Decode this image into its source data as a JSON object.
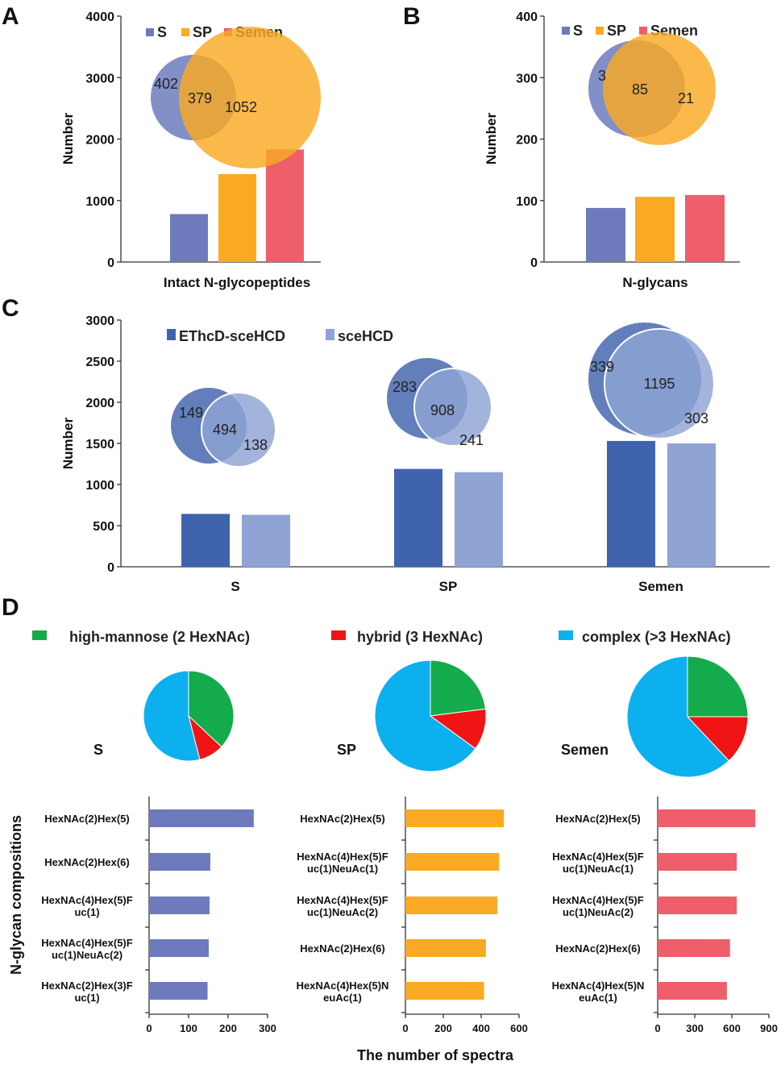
{
  "figure": {
    "xlabel": "The number of spectra",
    "ylabel": "N-glycan compositions"
  },
  "colors": {
    "S": "#6d7bbd",
    "SP": "#f9aa22",
    "Semen": "#ee5f6b",
    "ethcd": "#3f63ad",
    "scehcd": "#8fa3d4",
    "high_mannose": "#13ab4b",
    "hybrid": "#f01414",
    "complex": "#0db0ef"
  },
  "chart_data": [
    {
      "panel": "A",
      "type": "bar",
      "categories": [
        "S",
        "SP",
        "Semen"
      ],
      "values": [
        780,
        1430,
        1830
      ],
      "xlabel": "Intact N-glycopeptides",
      "ylabel": "Number",
      "ylim": [
        0,
        4000
      ],
      "yticks": [
        "0",
        "1000",
        "2000",
        "3000",
        "4000"
      ],
      "legend": [
        "S",
        "SP",
        "Semen"
      ],
      "venn": [
        "402",
        "379",
        "1052"
      ]
    },
    {
      "panel": "B",
      "type": "bar",
      "categories": [
        "S",
        "SP",
        "Semen"
      ],
      "values": [
        88,
        106,
        109
      ],
      "xlabel": "N-glycans",
      "ylabel": "Number",
      "ylim": [
        0,
        400
      ],
      "yticks": [
        "0",
        "100",
        "200",
        "300",
        "400"
      ],
      "legend": [
        "S",
        "SP",
        "Semen"
      ],
      "venn": [
        "3",
        "85",
        "21"
      ]
    },
    {
      "panel": "C",
      "type": "bar",
      "categories": [
        "S",
        "SP",
        "Semen"
      ],
      "series": [
        {
          "name": "EThcD-sceHCD",
          "values": [
            643,
            1190,
            1530
          ]
        },
        {
          "name": "sceHCD",
          "values": [
            632,
            1150,
            1500
          ]
        }
      ],
      "ylabel": "Number",
      "ylim": [
        0,
        3000
      ],
      "yticks": [
        "0",
        "500",
        "1000",
        "1500",
        "2000",
        "2500",
        "3000"
      ],
      "venns": [
        {
          "sample": "S",
          "labels": [
            "149",
            "494",
            "138"
          ]
        },
        {
          "sample": "SP",
          "labels": [
            "283",
            "908",
            "241"
          ]
        },
        {
          "sample": "Semen",
          "labels": [
            "339",
            "1195",
            "303"
          ]
        }
      ]
    },
    {
      "panel": "D",
      "type": "pie",
      "legend": [
        "high-mannose (2 HexNAc)",
        "hybrid (3 HexNAc)",
        "complex (>3 HexNAc)"
      ],
      "pies": [
        {
          "name": "S",
          "values": [
            37,
            9,
            54
          ]
        },
        {
          "name": "SP",
          "values": [
            23,
            12,
            65
          ]
        },
        {
          "name": "Semen",
          "values": [
            25,
            13,
            62
          ]
        }
      ]
    },
    {
      "panel": "D",
      "type": "bar",
      "orientation": "horizontal",
      "xlabel": "The number of spectra",
      "ylabel": "N-glycan compositions",
      "groups": [
        {
          "name": "S",
          "xlim": [
            0,
            300
          ],
          "xticks": [
            "0",
            "100",
            "200",
            "300"
          ],
          "labels": [
            [
              "HexNAc(2)Hex(5)"
            ],
            [
              "HexNAc(2)Hex(6)"
            ],
            [
              "HexNAc(4)Hex(5)F",
              "uc(1)"
            ],
            [
              "HexNAc(4)Hex(5)F",
              "uc(1)NeuAc(2)"
            ],
            [
              "HexNAc(2)Hex(3)F",
              "uc(1)"
            ]
          ],
          "values": [
            265,
            155,
            153,
            151,
            148
          ]
        },
        {
          "name": "SP",
          "xlim": [
            0,
            600
          ],
          "xticks": [
            "0",
            "200",
            "400",
            "600"
          ],
          "labels": [
            [
              "HexNAc(2)Hex(5)"
            ],
            [
              "HexNAc(4)Hex(5)F",
              "uc(1)NeuAc(1)"
            ],
            [
              "HexNAc(4)Hex(5)F",
              "uc(1)NeuAc(2)"
            ],
            [
              "HexNAc(2)Hex(6)"
            ],
            [
              "HexNAc(4)Hex(5)N",
              "euAc(1)"
            ]
          ],
          "values": [
            520,
            495,
            485,
            425,
            415
          ]
        },
        {
          "name": "Semen",
          "xlim": [
            0,
            900
          ],
          "xticks": [
            "0",
            "300",
            "600",
            "900"
          ],
          "labels": [
            [
              "HexNAc(2)Hex(5)"
            ],
            [
              "HexNAc(4)Hex(5)F",
              "uc(1)NeuAc(1)"
            ],
            [
              "HexNAc(4)Hex(5)F",
              "uc(1)NeuAc(2)"
            ],
            [
              "HexNAc(2)Hex(6)"
            ],
            [
              "HexNAc(4)Hex(5)N",
              "euAc(1)"
            ]
          ],
          "values": [
            790,
            640,
            640,
            585,
            560
          ]
        }
      ]
    }
  ]
}
